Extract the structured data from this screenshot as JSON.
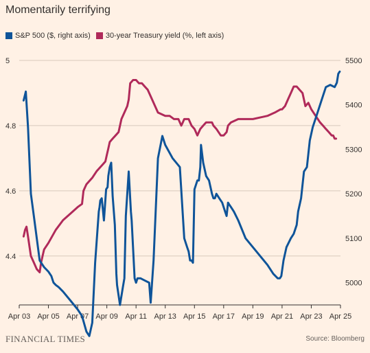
{
  "title": "Momentarily terrifying",
  "footer": {
    "brand": "FINANCIAL TIMES",
    "source": "Source: Bloomberg"
  },
  "colors": {
    "sp500": "#0f5499",
    "treasury": "#b02a5a",
    "grid": "#d8c9bc",
    "axis": "#33302e"
  },
  "chart_data": {
    "type": "line",
    "title": "Momentarily terrifying",
    "x_tick_labels": [
      "Apr 03",
      "Apr 05",
      "Apr 07",
      "Apr 09",
      "Apr 11",
      "Apr 13",
      "Apr 15",
      "Apr 17",
      "Apr 19",
      "Apr 21",
      "Apr 23",
      "Apr 25"
    ],
    "xlim": [
      3,
      25
    ],
    "left_axis": {
      "lim": [
        4.25,
        5.0
      ],
      "ticks": [
        4.4,
        4.6,
        4.8,
        5
      ],
      "tick_labels": [
        "4.4",
        "4.6",
        "4.8",
        "5"
      ]
    },
    "right_axis": {
      "lim": [
        4950,
        5500
      ],
      "ticks": [
        5000,
        5100,
        5200,
        5300,
        5400,
        5500
      ],
      "tick_labels": [
        "5000",
        "5100",
        "5200",
        "5300",
        "5400",
        "5500"
      ]
    },
    "series": [
      {
        "name": "S&P 500 ($, right axis)",
        "axis": "right",
        "x": [
          3.3,
          3.45,
          3.6,
          3.8,
          4.0,
          4.4,
          4.7,
          5.0,
          5.2,
          5.3,
          5.35,
          5.5,
          5.7,
          6.0,
          6.5,
          7.0,
          7.3,
          7.6,
          7.8,
          8.0,
          8.2,
          8.45,
          8.5,
          8.55,
          8.65,
          8.8,
          8.95,
          9.05,
          9.1,
          9.2,
          9.3,
          9.4,
          9.55,
          9.65,
          9.7,
          9.9,
          10.1,
          10.2,
          10.3,
          10.5,
          10.65,
          10.7,
          10.9,
          11.0,
          11.1,
          11.3,
          11.6,
          11.9,
          12.0,
          12.2,
          12.5,
          12.8,
          13.0,
          13.5,
          14.0,
          14.3,
          14.5,
          14.6,
          14.7,
          14.8,
          14.9,
          15.0,
          15.2,
          15.3,
          15.4,
          15.45,
          15.6,
          15.8,
          16.0,
          16.2,
          16.3,
          16.4,
          16.5,
          16.7,
          16.9,
          17.0,
          17.1,
          17.2,
          17.3,
          17.4,
          17.5,
          17.7,
          18.0,
          18.5,
          19.0,
          19.5,
          20.0,
          20.4,
          20.7,
          20.85,
          20.95,
          21.1,
          21.3,
          21.6,
          21.8,
          22.0,
          22.1,
          22.3,
          22.5,
          22.7,
          22.9,
          23.1,
          23.4,
          23.7,
          24.0,
          24.3,
          24.6,
          24.75,
          24.85,
          24.95
        ],
        "y": [
          5410,
          5430,
          5350,
          5200,
          5150,
          5050,
          5035,
          5025,
          5015,
          5005,
          5000,
          4995,
          4990,
          4980,
          4960,
          4940,
          4925,
          4890,
          4880,
          4910,
          5045,
          5160,
          5170,
          5185,
          5190,
          5140,
          5210,
          5215,
          5240,
          5260,
          5270,
          5195,
          5130,
          5020,
          4995,
          4950,
          4990,
          5010,
          5150,
          5250,
          5160,
          5140,
          5010,
          5000,
          5010,
          5010,
          5005,
          5000,
          4955,
          5050,
          5280,
          5330,
          5310,
          5280,
          5260,
          5100,
          5080,
          5070,
          5050,
          5050,
          5045,
          5210,
          5230,
          5230,
          5260,
          5310,
          5270,
          5240,
          5230,
          5200,
          5190,
          5190,
          5200,
          5190,
          5180,
          5170,
          5160,
          5150,
          5180,
          5175,
          5170,
          5160,
          5140,
          5100,
          5080,
          5060,
          5040,
          5020,
          5010,
          5010,
          5015,
          5050,
          5080,
          5100,
          5110,
          5130,
          5160,
          5190,
          5250,
          5260,
          5320,
          5350,
          5380,
          5410,
          5440,
          5445,
          5440,
          5450,
          5470,
          5475
        ],
        "y_display": "right"
      },
      {
        "name": "30-year Treasury yield (%, left axis)",
        "axis": "left",
        "x": [
          3.3,
          3.4,
          3.5,
          3.6,
          3.7,
          3.8,
          4.0,
          4.2,
          4.4,
          4.5,
          4.6,
          4.7,
          5.0,
          5.5,
          6.0,
          6.5,
          7.0,
          7.3,
          7.4,
          7.5,
          7.6,
          8.0,
          8.3,
          8.5,
          8.7,
          8.9,
          9.0,
          9.1,
          9.2,
          9.4,
          9.6,
          9.8,
          9.9,
          10.0,
          10.2,
          10.4,
          10.5,
          10.6,
          10.8,
          11.0,
          11.2,
          11.4,
          11.6,
          11.8,
          12.0,
          12.5,
          13.0,
          13.3,
          13.6,
          13.9,
          14.0,
          14.1,
          14.2,
          14.3,
          14.6,
          14.8,
          15.0,
          15.1,
          15.2,
          15.4,
          15.6,
          15.8,
          16.0,
          16.2,
          16.3,
          16.5,
          16.8,
          17.0,
          17.2,
          17.3,
          17.5,
          18.0,
          19.0,
          20.0,
          20.5,
          20.9,
          21.0,
          21.2,
          21.4,
          21.6,
          21.8,
          22.0,
          22.2,
          22.4,
          22.5,
          22.6,
          22.8,
          23.0,
          23.3,
          23.6,
          23.8,
          24.0,
          24.2,
          24.4,
          24.5,
          24.6,
          24.7
        ],
        "y": [
          4.46,
          4.48,
          4.49,
          4.46,
          4.43,
          4.4,
          4.38,
          4.36,
          4.35,
          4.38,
          4.4,
          4.42,
          4.44,
          4.48,
          4.51,
          4.53,
          4.55,
          4.56,
          4.6,
          4.61,
          4.62,
          4.64,
          4.66,
          4.67,
          4.68,
          4.69,
          4.71,
          4.73,
          4.75,
          4.76,
          4.77,
          4.78,
          4.8,
          4.82,
          4.84,
          4.86,
          4.88,
          4.93,
          4.94,
          4.94,
          4.93,
          4.93,
          4.92,
          4.91,
          4.89,
          4.84,
          4.83,
          4.83,
          4.82,
          4.82,
          4.81,
          4.8,
          4.81,
          4.82,
          4.82,
          4.8,
          4.79,
          4.78,
          4.77,
          4.79,
          4.8,
          4.81,
          4.81,
          4.81,
          4.8,
          4.79,
          4.77,
          4.77,
          4.78,
          4.8,
          4.81,
          4.82,
          4.82,
          4.83,
          4.84,
          4.85,
          4.85,
          4.86,
          4.88,
          4.9,
          4.92,
          4.92,
          4.91,
          4.9,
          4.88,
          4.86,
          4.87,
          4.85,
          4.83,
          4.81,
          4.8,
          4.79,
          4.78,
          4.77,
          4.77,
          4.76,
          4.76
        ]
      }
    ],
    "legend_placement": "top-left",
    "grid": true
  }
}
